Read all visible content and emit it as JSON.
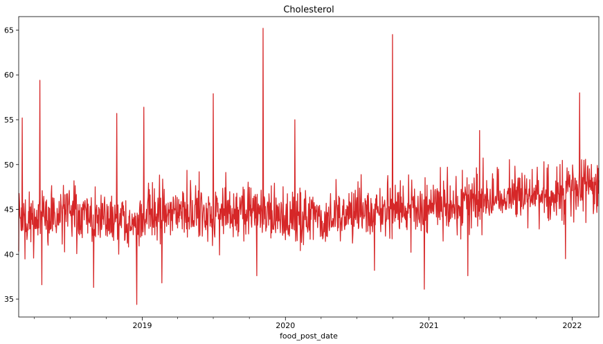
{
  "chart_data": {
    "type": "line",
    "title": "Cholesterol",
    "xlabel": "food_post_date",
    "ylabel": "",
    "x_range": [
      "2018-02-20",
      "2022-03-10"
    ],
    "ylim": [
      33,
      66.5
    ],
    "x_ticks": [
      {
        "date": "2019-01-01",
        "label": "2019"
      },
      {
        "date": "2020-01-01",
        "label": "2020"
      },
      {
        "date": "2021-01-01",
        "label": "2021"
      },
      {
        "date": "2022-01-01",
        "label": "2022"
      }
    ],
    "x_minor_ticks": [
      "2018-04-01",
      "2018-07-01",
      "2018-10-01",
      "2019-04-01",
      "2019-07-01",
      "2019-10-01",
      "2020-04-01",
      "2020-07-01",
      "2020-10-01",
      "2021-04-01",
      "2021-07-01",
      "2021-10-01"
    ],
    "y_ticks": [
      35,
      40,
      45,
      50,
      55,
      60,
      65
    ],
    "y_tick_labels": [
      "35",
      "40",
      "45",
      "50",
      "55",
      "60",
      "65"
    ],
    "grid": false,
    "legend": "none",
    "color": "#d62728",
    "series": [
      {
        "x": [
          "2018-02-20",
          "2018-03-15",
          "2018-04-10",
          "2018-05-10",
          "2018-06-10",
          "2018-07-10",
          "2018-08-10",
          "2018-09-10",
          "2018-10-10",
          "2018-11-10",
          "2018-12-10",
          "2019-01-10",
          "2019-02-10",
          "2019-03-10",
          "2019-04-10",
          "2019-05-10",
          "2019-06-10",
          "2019-07-10",
          "2019-08-10",
          "2019-09-10",
          "2019-10-10",
          "2019-11-10",
          "2019-12-10",
          "2020-01-10",
          "2020-02-10",
          "2020-03-10",
          "2020-04-10",
          "2020-05-10",
          "2020-06-10",
          "2020-07-10",
          "2020-08-10",
          "2020-09-10",
          "2020-10-10",
          "2020-11-10",
          "2020-12-10",
          "2021-01-10",
          "2021-02-10",
          "2021-03-10",
          "2021-04-10",
          "2021-05-10",
          "2021-06-10",
          "2021-07-10",
          "2021-08-10",
          "2021-09-10",
          "2021-10-10",
          "2021-11-10",
          "2021-12-10",
          "2022-01-10",
          "2022-02-10",
          "2022-03-10"
        ],
        "values": [
          44.0,
          43.8,
          44.2,
          44.1,
          44.4,
          44.0,
          44.3,
          43.9,
          44.2,
          44.0,
          43.7,
          44.5,
          44.3,
          44.6,
          44.4,
          44.8,
          44.5,
          44.9,
          44.7,
          44.8,
          44.5,
          44.6,
          44.3,
          44.2,
          44.0,
          43.9,
          43.8,
          43.9,
          44.2,
          44.4,
          44.6,
          44.8,
          45.0,
          45.2,
          45.0,
          45.4,
          45.6,
          45.5,
          45.8,
          46.0,
          46.2,
          46.1,
          46.4,
          46.6,
          46.7,
          46.9,
          47.0,
          47.2,
          47.4,
          47.6
        ]
      }
    ],
    "spikes_high": [
      {
        "date": "2018-03-01",
        "value": 55.2
      },
      {
        "date": "2018-04-15",
        "value": 59.4
      },
      {
        "date": "2018-10-28",
        "value": 55.7
      },
      {
        "date": "2019-01-05",
        "value": 56.4
      },
      {
        "date": "2019-07-01",
        "value": 57.9
      },
      {
        "date": "2019-11-05",
        "value": 65.2
      },
      {
        "date": "2020-01-25",
        "value": 55.0
      },
      {
        "date": "2020-09-30",
        "value": 64.5
      },
      {
        "date": "2021-05-10",
        "value": 53.8
      },
      {
        "date": "2022-01-20",
        "value": 58.0
      }
    ],
    "spikes_low": [
      {
        "date": "2018-04-20",
        "value": 36.6
      },
      {
        "date": "2018-08-30",
        "value": 36.3
      },
      {
        "date": "2018-12-18",
        "value": 34.4
      },
      {
        "date": "2019-02-20",
        "value": 36.8
      },
      {
        "date": "2019-10-20",
        "value": 37.6
      },
      {
        "date": "2020-08-15",
        "value": 38.2
      },
      {
        "date": "2020-12-20",
        "value": 36.1
      },
      {
        "date": "2021-04-10",
        "value": 37.6
      },
      {
        "date": "2021-12-15",
        "value": 39.5
      }
    ]
  }
}
